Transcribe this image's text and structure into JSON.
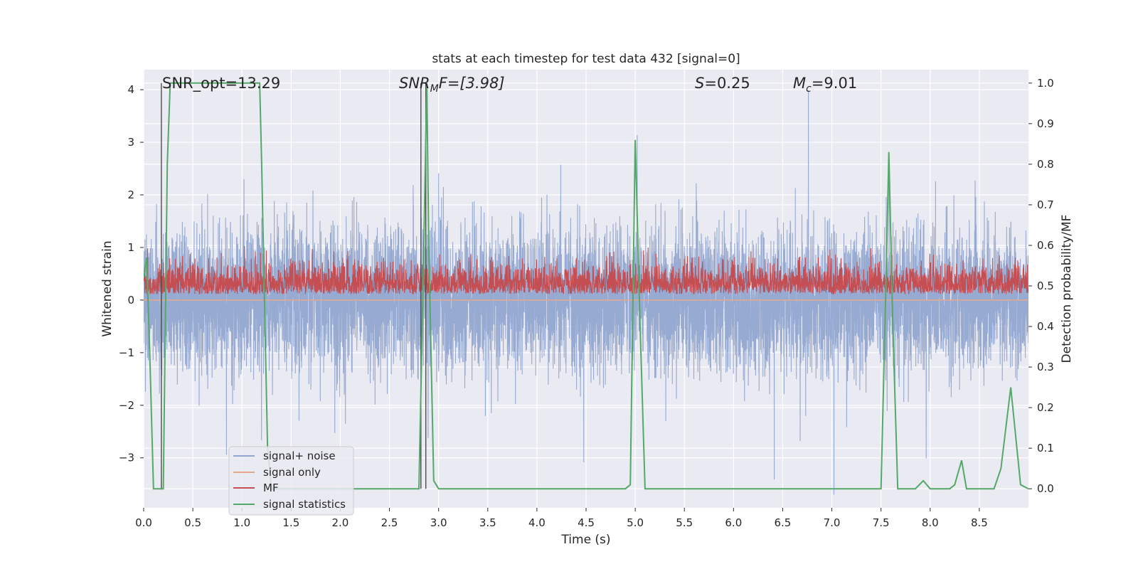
{
  "chart_data": {
    "type": "line",
    "title": "stats at each timestep for test data 432 [signal=0]",
    "xlabel": "Time (s)",
    "ylabel": "Whitened strain",
    "y2label": "Detection probability/MF",
    "xlim": [
      0.0,
      9.0
    ],
    "ylim": [
      -3.95,
      4.38
    ],
    "y2lim": [
      -0.047,
      1.033
    ],
    "x_ticks": [
      "0.0",
      "0.5",
      "1.0",
      "1.5",
      "2.0",
      "2.5",
      "3.0",
      "3.5",
      "4.0",
      "4.5",
      "5.0",
      "5.5",
      "6.0",
      "6.5",
      "7.0",
      "7.5",
      "8.0",
      "8.5"
    ],
    "y_ticks": [
      "4",
      "3",
      "2",
      "1",
      "0",
      "−1",
      "−2",
      "−3"
    ],
    "y2_ticks": [
      "1.0",
      "0.9",
      "0.8",
      "0.7",
      "0.6",
      "0.5",
      "0.4",
      "0.3",
      "0.2",
      "0.1",
      "0.0"
    ],
    "grid": true,
    "annotations": {
      "snr_opt": "SNR_opt=13.29",
      "snr_mf_var": "SNR",
      "snr_mf_sub": "M",
      "snr_mf_rest": "F=[3.98]",
      "s_var": "S",
      "s_rest": "=0.25",
      "mc_var": "M",
      "mc_sub": "c",
      "mc_rest": "=9.01"
    },
    "legend": {
      "position": "lower-left",
      "entries": [
        {
          "label": "signal+ noise",
          "color": "#92a6cf"
        },
        {
          "label": "signal only",
          "color": "#e8a88c"
        },
        {
          "label": "MF",
          "color": "#c44e52"
        },
        {
          "label": "signal statistics",
          "color": "#55a868"
        }
      ]
    },
    "series": [
      {
        "name": "signal+ noise",
        "axis": "left",
        "color": "#92a6cf",
        "description_range": [
          -3.7,
          4.0
        ],
        "typical_envelope": [
          -1.8,
          2.0
        ]
      },
      {
        "name": "signal only",
        "axis": "left",
        "color": "#e8a88c",
        "constant": 0.0
      },
      {
        "name": "MF",
        "axis": "right",
        "color": "#c44e52",
        "typical_range": [
          0.48,
          0.6
        ]
      },
      {
        "name": "signal statistics",
        "axis": "right",
        "color": "#55a868",
        "x": [
          0.0,
          0.03,
          0.06,
          0.1,
          0.14,
          0.2,
          0.24,
          0.27,
          0.3,
          1.18,
          1.2,
          1.23,
          1.26,
          1.3,
          2.8,
          2.85,
          2.88,
          2.9,
          2.95,
          3.0,
          4.9,
          4.95,
          5.0,
          5.05,
          5.1,
          7.5,
          7.55,
          7.58,
          7.62,
          7.67,
          7.7,
          7.85,
          7.93,
          8.0,
          8.2,
          8.25,
          8.32,
          8.37,
          8.42,
          8.65,
          8.72,
          8.82,
          8.92,
          9.0
        ],
        "values": [
          0.52,
          0.57,
          0.35,
          0.0,
          0.0,
          0.0,
          0.8,
          1.0,
          1.0,
          1.0,
          0.8,
          0.45,
          0.1,
          0.0,
          0.0,
          0.6,
          1.0,
          0.6,
          0.02,
          0.0,
          0.0,
          0.01,
          0.86,
          0.4,
          0.0,
          0.0,
          0.5,
          0.83,
          0.4,
          0.0,
          0.0,
          0.0,
          0.02,
          0.0,
          0.0,
          0.01,
          0.07,
          0.0,
          0.0,
          0.0,
          0.05,
          0.25,
          0.01,
          0.0
        ]
      },
      {
        "name": "marker lines",
        "axis": "right",
        "color": "#4d4d4d",
        "x": [
          0.18,
          2.82,
          2.87
        ]
      }
    ]
  }
}
